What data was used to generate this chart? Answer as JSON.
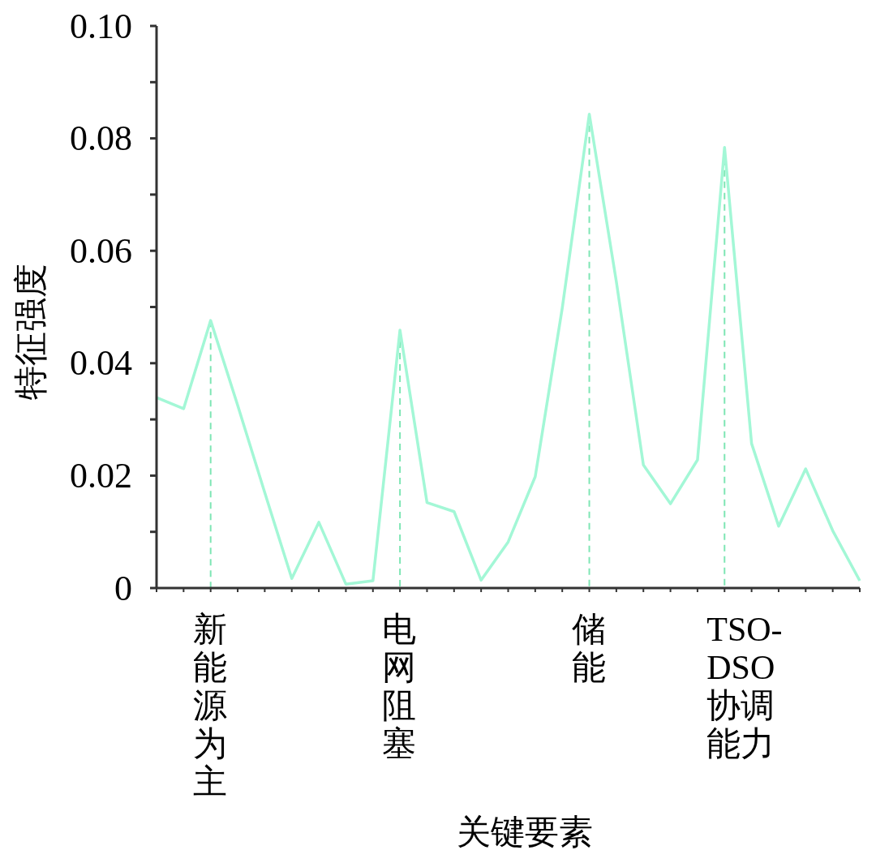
{
  "chart_data": {
    "type": "line",
    "xlabel": "关键要素",
    "ylabel": "特征强度",
    "categories": [
      null,
      null,
      "新能源为主",
      null,
      null,
      null,
      null,
      null,
      null,
      "电网阻塞",
      null,
      null,
      null,
      null,
      null,
      null,
      "储能",
      null,
      null,
      null,
      null,
      "TSO-DSO协调能力",
      null,
      null,
      null,
      null,
      null
    ],
    "series": [
      {
        "color": "#a3f7d6",
        "values": [
          0.0339,
          0.0319,
          0.0476,
          0.0325,
          0.017,
          0.0017,
          0.0117,
          0.0007,
          0.0013,
          0.0459,
          0.0152,
          0.0136,
          0.0014,
          0.0082,
          0.0198,
          0.0498,
          0.0843,
          0.0545,
          0.0219,
          0.015,
          0.0228,
          0.0784,
          0.0257,
          0.011,
          0.0212,
          0.0102,
          0.0013
        ]
      }
    ],
    "ylim": [
      0,
      0.1
    ],
    "yticks": [
      0,
      {
        "value": 0.01,
        "label": null
      },
      0.02,
      {
        "value": 0.03,
        "label": null
      },
      0.04,
      {
        "value": 0.05,
        "label": null
      },
      0.06,
      {
        "value": 0.07,
        "label": null
      },
      0.08,
      {
        "value": 0.09,
        "label": null
      },
      {
        "value": 0.1,
        "label": "0.10"
      }
    ],
    "ref_lines": [
      {
        "axis": "x",
        "value": "新能源为主",
        "color": "#7ee6b4",
        "line_style": "dashed"
      },
      {
        "axis": "x",
        "value": "电网阻塞",
        "color": "#7ee6b4",
        "line_style": "dashed"
      },
      {
        "axis": "x",
        "value": "储能",
        "color": "#7ee6b4",
        "line_style": "dashed"
      },
      {
        "axis": "x",
        "value": "TSO-DSO协调能力",
        "color": "#7ee6b4",
        "line_style": "dashed"
      }
    ],
    "grid": false,
    "marker": "none",
    "line_style": "solid"
  }
}
